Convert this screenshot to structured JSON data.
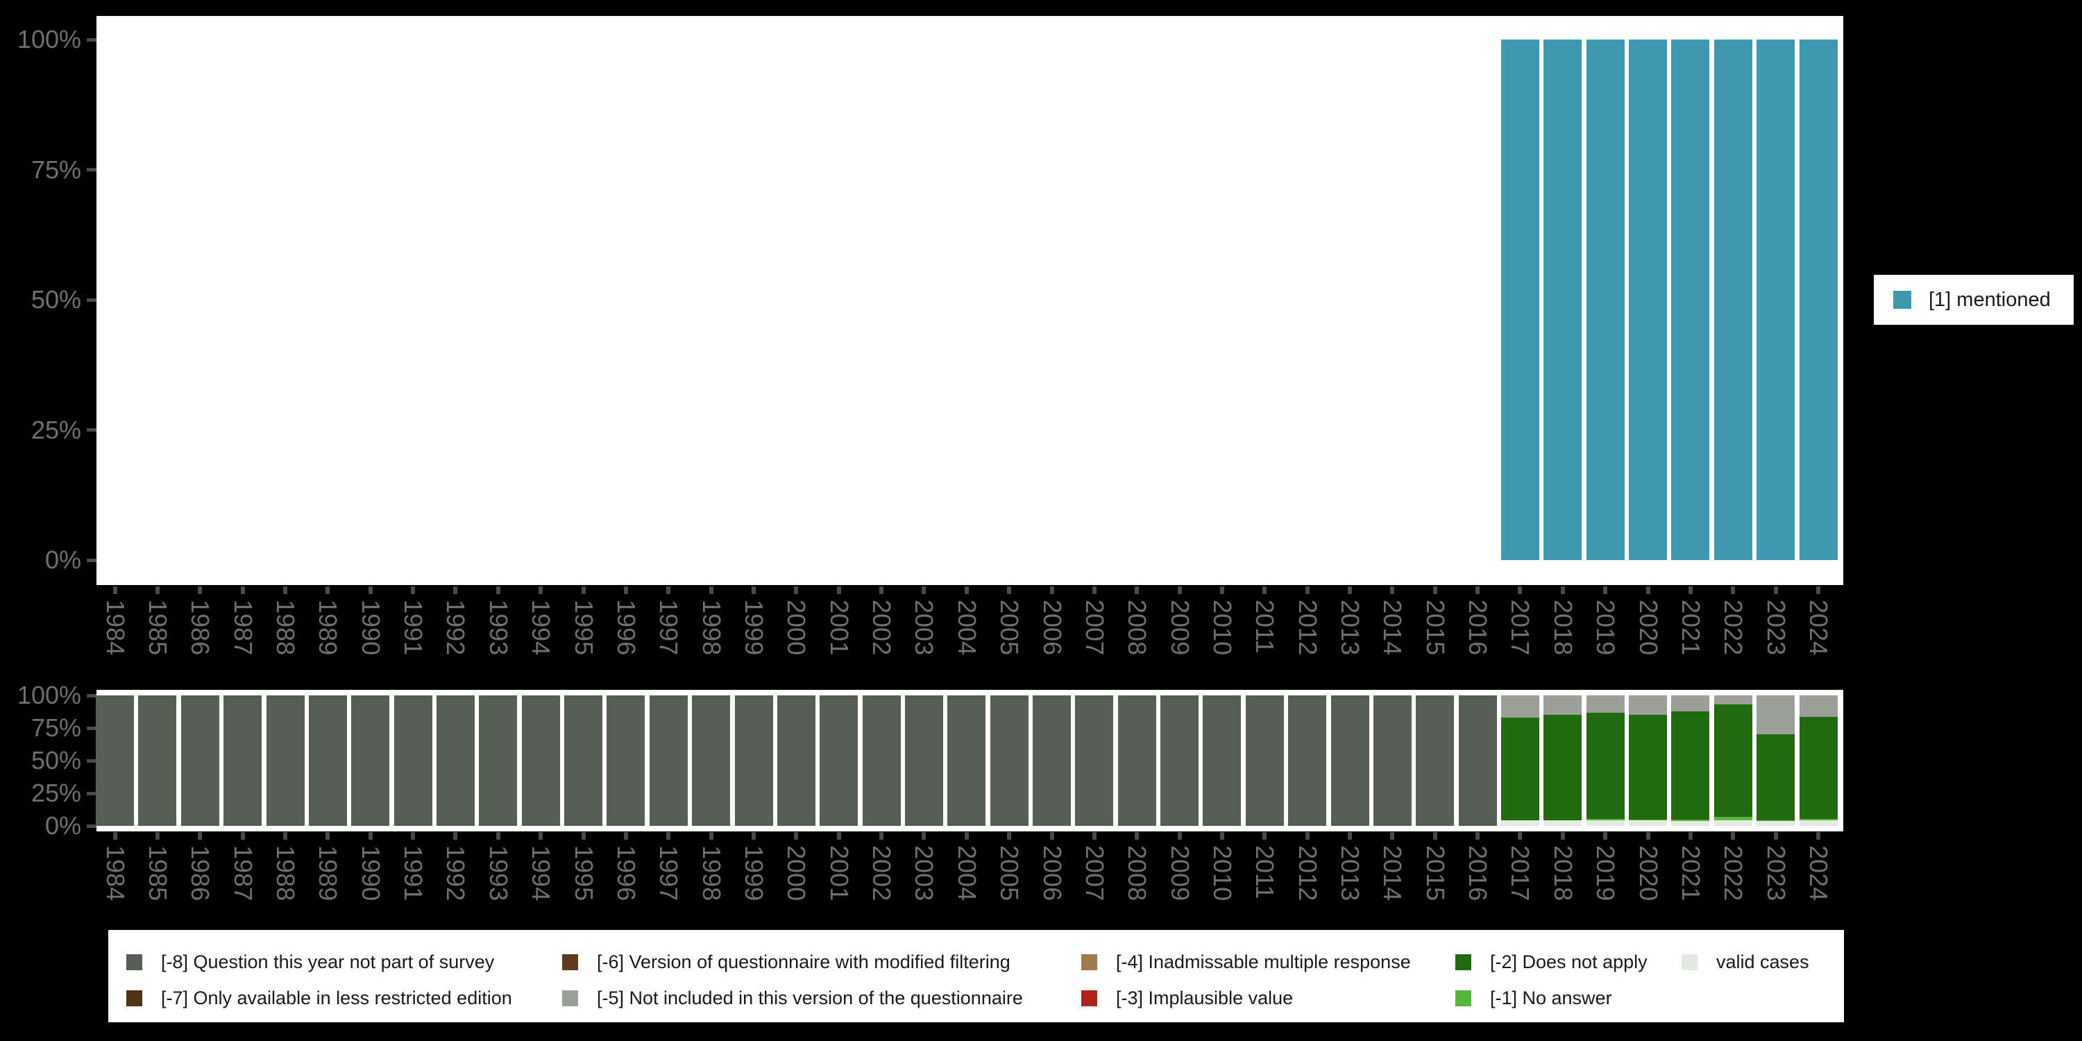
{
  "page": {
    "background": "#000000"
  },
  "axis": {
    "years": [
      "1984",
      "1985",
      "1986",
      "1987",
      "1988",
      "1989",
      "1990",
      "1991",
      "1992",
      "1993",
      "1994",
      "1995",
      "1996",
      "1997",
      "1998",
      "1999",
      "2000",
      "2001",
      "2002",
      "2003",
      "2004",
      "2005",
      "2006",
      "2007",
      "2008",
      "2009",
      "2010",
      "2011",
      "2012",
      "2013",
      "2014",
      "2015",
      "2016",
      "2017",
      "2018",
      "2019",
      "2020",
      "2021",
      "2022",
      "2023",
      "2024"
    ],
    "y_ticks": [
      "0%",
      "25%",
      "50%",
      "75%",
      "100%"
    ]
  },
  "chart_data": [
    {
      "type": "bar",
      "panel": "top",
      "title": "",
      "xlabel": "",
      "ylabel": "",
      "ylim": [
        0,
        100
      ],
      "grid": false,
      "legend_position": "right",
      "categories": [
        "1984",
        "1985",
        "1986",
        "1987",
        "1988",
        "1989",
        "1990",
        "1991",
        "1992",
        "1993",
        "1994",
        "1995",
        "1996",
        "1997",
        "1998",
        "1999",
        "2000",
        "2001",
        "2002",
        "2003",
        "2004",
        "2005",
        "2006",
        "2007",
        "2008",
        "2009",
        "2010",
        "2011",
        "2012",
        "2013",
        "2014",
        "2015",
        "2016",
        "2017",
        "2018",
        "2019",
        "2020",
        "2021",
        "2022",
        "2023",
        "2024"
      ],
      "series": [
        {
          "name": "[1] mentioned",
          "color": "#3e99b0",
          "values": [
            null,
            null,
            null,
            null,
            null,
            null,
            null,
            null,
            null,
            null,
            null,
            null,
            null,
            null,
            null,
            null,
            null,
            null,
            null,
            null,
            null,
            null,
            null,
            null,
            null,
            null,
            null,
            null,
            null,
            null,
            null,
            null,
            null,
            100,
            100,
            100,
            100,
            100,
            100,
            100,
            100
          ]
        }
      ]
    },
    {
      "type": "bar",
      "panel": "bottom",
      "stacked": true,
      "stack_order": "bottom-to-top",
      "title": "",
      "xlabel": "",
      "ylabel": "",
      "ylim": [
        0,
        100
      ],
      "grid": false,
      "categories": [
        "1984",
        "1985",
        "1986",
        "1987",
        "1988",
        "1989",
        "1990",
        "1991",
        "1992",
        "1993",
        "1994",
        "1995",
        "1996",
        "1997",
        "1998",
        "1999",
        "2000",
        "2001",
        "2002",
        "2003",
        "2004",
        "2005",
        "2006",
        "2007",
        "2008",
        "2009",
        "2010",
        "2011",
        "2012",
        "2013",
        "2014",
        "2015",
        "2016",
        "2017",
        "2018",
        "2019",
        "2020",
        "2021",
        "2022",
        "2023",
        "2024"
      ],
      "series": [
        {
          "name": "valid cases",
          "color": "#e4e9e1",
          "values": [
            0,
            0,
            0,
            0,
            0,
            0,
            0,
            0,
            0,
            0,
            0,
            0,
            0,
            0,
            0,
            0,
            0,
            0,
            0,
            0,
            0,
            0,
            0,
            0,
            0,
            0,
            0,
            0,
            0,
            0,
            0,
            0,
            0,
            4,
            4,
            4,
            4,
            3.5,
            4,
            3.5,
            4
          ]
        },
        {
          "name": "[-1] No answer",
          "color": "#55b83c",
          "values": [
            0,
            0,
            0,
            0,
            0,
            0,
            0,
            0,
            0,
            0,
            0,
            0,
            0,
            0,
            0,
            0,
            0,
            0,
            0,
            0,
            0,
            0,
            0,
            0,
            0,
            0,
            0,
            0,
            0,
            0,
            0,
            0,
            0,
            0,
            0,
            1.5,
            1,
            1.5,
            3,
            1,
            1.5
          ]
        },
        {
          "name": "[-2] Does not apply",
          "color": "#216a0e",
          "values": [
            0,
            0,
            0,
            0,
            0,
            0,
            0,
            0,
            0,
            0,
            0,
            0,
            0,
            0,
            0,
            0,
            0,
            0,
            0,
            0,
            0,
            0,
            0,
            0,
            0,
            0,
            0,
            0,
            0,
            0,
            0,
            0,
            0,
            79,
            81,
            81,
            80,
            83,
            86,
            65.5,
            78
          ]
        },
        {
          "name": "[-5] Not included in this version of the questionnaire",
          "color": "#9ba099",
          "values": [
            0,
            0,
            0,
            0,
            0,
            0,
            0,
            0,
            0,
            0,
            0,
            0,
            0,
            0,
            0,
            0,
            0,
            0,
            0,
            0,
            0,
            0,
            0,
            0,
            0,
            0,
            0,
            0,
            0,
            0,
            0,
            0,
            0,
            17,
            15,
            13.5,
            15,
            12,
            7,
            30,
            16.5
          ]
        },
        {
          "name": "[-8] Question this year not part of survey",
          "color": "#565f53",
          "values": [
            100,
            100,
            100,
            100,
            100,
            100,
            100,
            100,
            100,
            100,
            100,
            100,
            100,
            100,
            100,
            100,
            100,
            100,
            100,
            100,
            100,
            100,
            100,
            100,
            100,
            100,
            100,
            100,
            100,
            100,
            100,
            100,
            100,
            0,
            0,
            0,
            0,
            0,
            0,
            0,
            0
          ]
        }
      ]
    }
  ],
  "top_legend": {
    "items": [
      {
        "label": "[1] mentioned",
        "color": "#3e99b0"
      }
    ]
  },
  "bottom_legend": {
    "rows": [
      [
        {
          "label": "[-8] Question this year not part of survey",
          "color": "#565f53"
        },
        {
          "label": "[-6] Version of questionnaire with modified filtering",
          "color": "#5e3c1c"
        },
        {
          "label": "[-4] Inadmissable multiple response",
          "color": "#a07a4e"
        },
        {
          "label": "[-2] Does not apply",
          "color": "#216a0e"
        },
        {
          "label": "valid cases",
          "color": "#e4e9e1"
        }
      ],
      [
        {
          "label": "[-7] Only available in less restricted edition",
          "color": "#4e3319"
        },
        {
          "label": "[-5] Not included in this version of the questionnaire",
          "color": "#9ba099"
        },
        {
          "label": "[-3] Implausible value",
          "color": "#b2211b"
        },
        {
          "label": "[-1] No answer",
          "color": "#55b83c"
        }
      ]
    ]
  }
}
